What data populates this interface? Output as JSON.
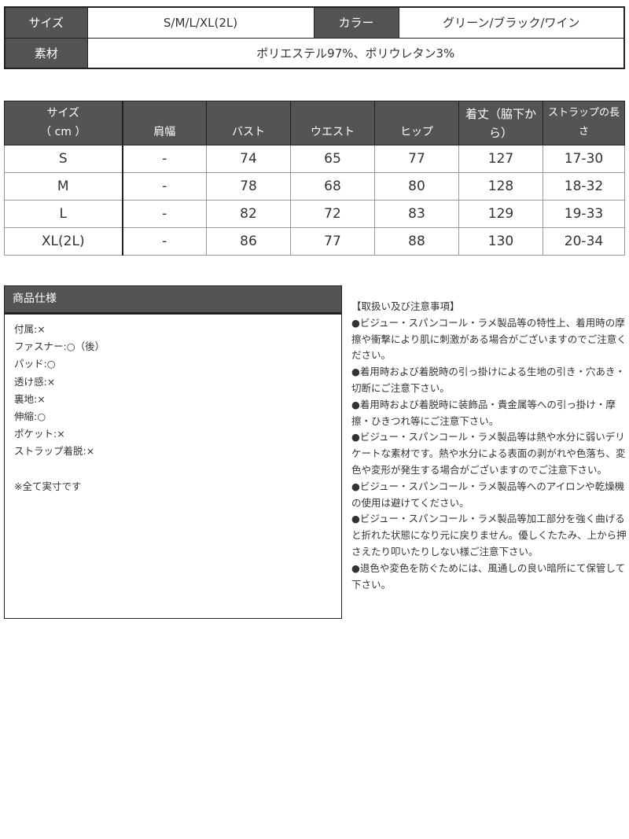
{
  "info": {
    "size_label": "サイズ",
    "size_value": "S/M/L/XL(2L)",
    "color_label": "カラー",
    "color_value": "グリーン/ブラック/ワイン",
    "material_label": "素材",
    "material_value": "ポリエステル97%、ポリウレタン3%"
  },
  "size_table": {
    "headers": [
      "サイズ",
      "（ cm ）",
      "肩幅",
      "バスト",
      "ウエスト",
      "ヒップ",
      "着丈（脇下から）",
      "ストラップの長さ"
    ],
    "rows": [
      [
        "S",
        "-",
        "74",
        "65",
        "77",
        "127",
        "17-30"
      ],
      [
        "M",
        "-",
        "78",
        "68",
        "80",
        "128",
        "18-32"
      ],
      [
        "L",
        "-",
        "82",
        "72",
        "83",
        "129",
        "19-33"
      ],
      [
        "XL(2L)",
        "-",
        "86",
        "77",
        "88",
        "130",
        "20-34"
      ]
    ]
  },
  "spec": {
    "title": "商品仕様",
    "items": [
      "付属:×",
      "ファスナー:○（後）",
      "パッド:○",
      "透け感:×",
      "裏地:×",
      "伸縮:○",
      "ポケット:×",
      "ストラップ着脱:×"
    ],
    "note": "※全て実寸です"
  },
  "notes": {
    "title": "【取扱い及び注意事項】",
    "items": [
      "●ビジュー・スパンコール・ラメ製品等の特性上、着用時の摩擦や衝撃により肌に刺激がある場合がございますのでご注意ください。",
      "●着用時および着脱時の引っ掛けによる生地の引き・穴あき・切断にご注意下さい。",
      "●着用時および着脱時に装飾品・貴金属等への引っ掛け・摩擦・ひきつれ等にご注意下さい。",
      "●ビジュー・スパンコール・ラメ製品等は熱や水分に弱いデリケートな素材です。熱や水分による表面の剥がれや色落ち、変色や変形が発生する場合がございますのでご注意下さい。",
      "●ビジュー・スパンコール・ラメ製品等へのアイロンや乾燥機の使用は避けてください。",
      "●ビジュー・スパンコール・ラメ製品等加工部分を強く曲げると折れた状態になり元に戻りません。優しくたたみ、上から押さえたり叩いたりしない様ご注意下さい。",
      "●退色や変色を防ぐためには、風通しの良い暗所にて保管して下さい。"
    ]
  },
  "colors": {
    "header_bg": "#545454",
    "border": "#222222"
  }
}
